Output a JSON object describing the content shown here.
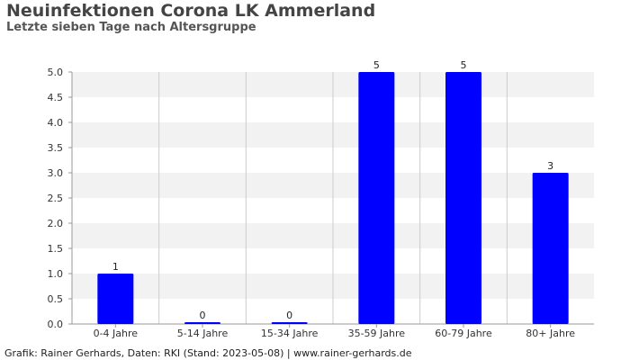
{
  "header": {
    "title": "Neuinfektionen Corona LK Ammerland",
    "subtitle": "Letzte sieben Tage nach Altersgruppe"
  },
  "footer": {
    "credit": "Grafik: Rainer Gerhards, Daten: RKI (Stand: 2023-05-08) | www.rainer-gerhards.de"
  },
  "colors": {
    "bar": "#0000ff",
    "band": "#f2f2f2",
    "grid": "#cccccc"
  },
  "chart_data": {
    "type": "bar",
    "title": "Neuinfektionen Corona LK Ammerland",
    "subtitle": "Letzte sieben Tage nach Altersgruppe",
    "categories": [
      "0-4 Jahre",
      "5-14 Jahre",
      "15-34 Jahre",
      "35-59 Jahre",
      "60-79 Jahre",
      "80+ Jahre"
    ],
    "values": [
      1,
      0,
      0,
      5,
      5,
      3
    ],
    "data_labels": [
      "1",
      "0",
      "0",
      "5",
      "5",
      "3"
    ],
    "y_ticks": [
      "0.0",
      "0.5",
      "1.0",
      "1.5",
      "2.0",
      "2.5",
      "3.0",
      "3.5",
      "4.0",
      "4.5",
      "5.0"
    ],
    "ylim": [
      0,
      5
    ],
    "grid": true,
    "legend": "none"
  }
}
